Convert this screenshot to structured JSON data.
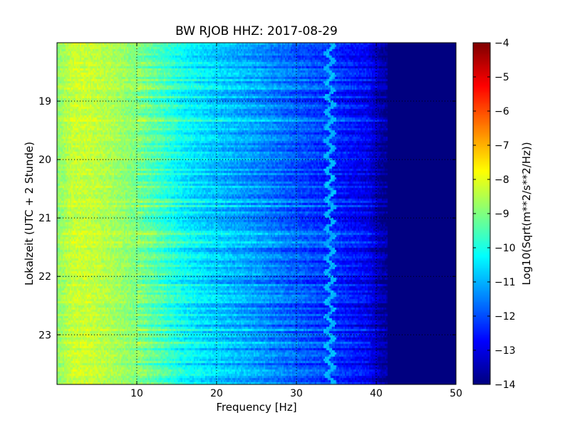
{
  "chart_data": {
    "type": "heatmap",
    "title": "BW RJOB HHZ: 2017-08-29",
    "xlabel": "Frequency [Hz]",
    "ylabel": "Lokalzeit (UTC + 2 Stunde)",
    "colorbar_label": "Log10(Sqrt(m**2/s**2/Hz))",
    "x_range": [
      0,
      50
    ],
    "y_range": [
      18.0,
      23.85
    ],
    "y_inverted": true,
    "x_ticks": [
      10,
      20,
      30,
      40,
      50
    ],
    "y_ticks": [
      19,
      20,
      21,
      22,
      23
    ],
    "colorbar_range": [
      -14,
      -4
    ],
    "colorbar_ticks": [
      -4,
      -5,
      -6,
      -7,
      -8,
      -9,
      -10,
      -11,
      -12,
      -13,
      -14
    ],
    "colormap": "jet",
    "grid": true,
    "grid_style": "dotted",
    "spectral_profile": {
      "frequency_hz": [
        0,
        2,
        4,
        7,
        10,
        13,
        16,
        20,
        25,
        30,
        35,
        39,
        40.5,
        42,
        50
      ],
      "level": [
        -8.9,
        -8.3,
        -8.3,
        -8.6,
        -9.0,
        -9.6,
        -10.3,
        -10.8,
        -11.3,
        -11.9,
        -12.4,
        -12.9,
        -13.6,
        -14.0,
        -14.0
      ]
    },
    "tone_line": {
      "approx_frequency_hz": 34.5,
      "level": -11.0
    }
  }
}
